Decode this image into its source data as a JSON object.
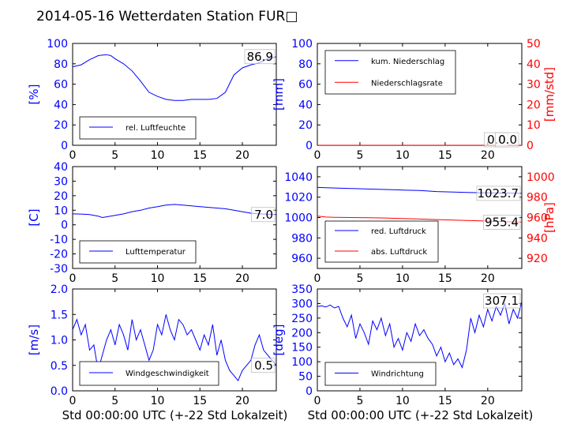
{
  "title": "2014-05-16 Wetterdaten Station FUR□",
  "xlabel": "Std 00:00:00 UTC (+-22 Std Lokalzeit)",
  "colors": {
    "left": "#0000ff",
    "right": "#ff0000"
  },
  "chart_data": [
    {
      "type": "line",
      "xlim": [
        0,
        24
      ],
      "ylim": [
        0,
        100
      ],
      "x_ticks": [
        0,
        5,
        10,
        15,
        20
      ],
      "y_ticks": [
        0,
        20,
        40,
        60,
        80,
        100
      ],
      "ylabel": "[%]",
      "annotation": "86.9",
      "legend_position": "lower-left",
      "series": [
        {
          "name": "rel. Luftfeuchte",
          "color": "#0000ff",
          "x": [
            0,
            1,
            2,
            3,
            4,
            4.5,
            5,
            6,
            7,
            8,
            9,
            10,
            11,
            12,
            13,
            14,
            15,
            16,
            17,
            18,
            19,
            20,
            21,
            22,
            23,
            24
          ],
          "y": [
            77,
            79,
            84,
            88,
            89,
            88,
            85,
            80,
            73,
            63,
            52,
            48,
            45,
            44,
            44,
            45,
            45,
            45,
            46,
            52,
            69,
            76,
            79,
            81,
            85,
            87
          ]
        }
      ]
    },
    {
      "type": "line",
      "xlim": [
        0,
        24
      ],
      "ylim": [
        0,
        100
      ],
      "ylim_right": [
        0,
        50
      ],
      "x_ticks": [
        0,
        5,
        10,
        15,
        20
      ],
      "y_ticks": [
        0,
        20,
        40,
        60,
        80,
        100
      ],
      "y_ticks_right": [
        0,
        10,
        20,
        30,
        40,
        50
      ],
      "ylabel": "[mm]",
      "ylabel_right": "[mm/std]",
      "annotations": [
        "0.0",
        "0.0"
      ],
      "legend_position": "upper-left",
      "series": [
        {
          "name": "kum. Niederschlag",
          "color": "#0000ff",
          "x": [
            0,
            24
          ],
          "y": [
            0,
            0
          ]
        },
        {
          "name": "Niederschlagsrate",
          "color": "#ff0000",
          "axis": "right",
          "x": [
            0,
            24
          ],
          "y": [
            0,
            0
          ]
        }
      ]
    },
    {
      "type": "line",
      "xlim": [
        0,
        24
      ],
      "ylim": [
        -30,
        40
      ],
      "x_ticks": [
        0,
        5,
        10,
        15,
        20
      ],
      "y_ticks": [
        -30,
        -20,
        -10,
        0,
        10,
        20,
        30,
        40
      ],
      "ylabel": "[C]",
      "annotation": "7.0",
      "legend_position": "lower-left",
      "series": [
        {
          "name": "Lufttemperatur",
          "color": "#0000ff",
          "x": [
            0,
            1,
            2,
            3,
            3.5,
            4,
            5,
            6,
            7,
            8,
            9,
            10,
            11,
            12,
            13,
            14,
            15,
            16,
            17,
            18,
            19,
            20,
            21,
            22,
            23,
            24
          ],
          "y": [
            7.5,
            7.4,
            7,
            6,
            5,
            5.5,
            6.5,
            7.5,
            9,
            10,
            11.5,
            12.5,
            13.5,
            14,
            13.5,
            13,
            12.5,
            12,
            11.5,
            11,
            10,
            9,
            8,
            7.5,
            7.2,
            7
          ]
        }
      ]
    },
    {
      "type": "line",
      "xlim": [
        0,
        24
      ],
      "ylim": [
        950,
        1050
      ],
      "ylim_right": [
        910,
        1010
      ],
      "x_ticks": [
        0,
        5,
        10,
        15,
        20
      ],
      "y_ticks": [
        960,
        980,
        1000,
        1020,
        1040
      ],
      "y_ticks_right": [
        920,
        940,
        960,
        980,
        1000
      ],
      "ylabel": "",
      "ylabel_right": "[hPa]",
      "annotations": [
        "1023.7",
        "955.4"
      ],
      "legend_position": "lower-left",
      "series": [
        {
          "name": "red. Luftdruck",
          "color": "#0000ff",
          "x": [
            0,
            2,
            4,
            6,
            8,
            10,
            12,
            14,
            16,
            18,
            20,
            22,
            24
          ],
          "y": [
            1029.5,
            1029,
            1028.5,
            1028,
            1027.5,
            1027,
            1026.5,
            1025.5,
            1025,
            1024.5,
            1024.3,
            1024,
            1023.7
          ]
        },
        {
          "name": "abs. Luftdruck",
          "color": "#ff0000",
          "axis": "right",
          "x": [
            0,
            1,
            2,
            4,
            6,
            8,
            10,
            12,
            14,
            16,
            18,
            20,
            22,
            24
          ],
          "y": [
            961.5,
            960.5,
            960.2,
            960,
            959.8,
            959.5,
            959,
            958.5,
            958,
            957.5,
            957,
            956.5,
            956,
            955.4
          ]
        }
      ]
    },
    {
      "type": "line",
      "xlim": [
        0,
        24
      ],
      "ylim": [
        0,
        2
      ],
      "x_ticks": [
        0,
        5,
        10,
        15,
        20
      ],
      "y_ticks": [
        0.0,
        0.5,
        1.0,
        1.5,
        2.0
      ],
      "ylabel": "[m/s]",
      "annotation": "0.5",
      "legend_position": "lower-left",
      "series": [
        {
          "name": "Windgeschwindigkeit",
          "color": "#0000ff",
          "x": [
            0,
            0.5,
            1,
            1.5,
            2,
            2.5,
            3,
            3.5,
            4,
            4.5,
            5,
            5.5,
            6,
            6.5,
            7,
            7.5,
            8,
            8.5,
            9,
            9.5,
            10,
            10.5,
            11,
            11.5,
            12,
            12.5,
            13,
            13.5,
            14,
            14.5,
            15,
            15.5,
            16,
            16.5,
            17,
            17.5,
            18,
            18.5,
            19,
            19.5,
            20,
            20.5,
            21,
            21.5,
            22,
            22.5,
            23,
            23.5,
            24
          ],
          "y": [
            1.2,
            1.4,
            1.1,
            1.3,
            0.8,
            0.9,
            0.4,
            0.7,
            1.0,
            1.2,
            0.9,
            1.3,
            1.1,
            0.8,
            1.4,
            1.0,
            1.2,
            0.9,
            0.6,
            0.8,
            1.3,
            1.1,
            1.5,
            1.2,
            1.0,
            1.4,
            1.3,
            1.1,
            1.2,
            1.0,
            0.8,
            1.1,
            0.9,
            1.3,
            0.7,
            1.0,
            0.6,
            0.4,
            0.3,
            0.2,
            0.4,
            0.5,
            0.6,
            0.9,
            1.1,
            0.8,
            0.7,
            0.6,
            0.5
          ]
        }
      ]
    },
    {
      "type": "line",
      "xlim": [
        0,
        24
      ],
      "ylim": [
        0,
        350
      ],
      "x_ticks": [
        0,
        5,
        10,
        15,
        20
      ],
      "y_ticks": [
        0,
        50,
        100,
        150,
        200,
        250,
        300,
        350
      ],
      "ylabel": "[deg]",
      "annotation": "307.1",
      "legend_position": "lower-left",
      "series": [
        {
          "name": "Windrichtung",
          "color": "#0000ff",
          "x": [
            0,
            0.5,
            1,
            1.5,
            2,
            2.5,
            3,
            3.5,
            4,
            4.5,
            5,
            5.5,
            6,
            6.5,
            7,
            7.5,
            8,
            8.5,
            9,
            9.5,
            10,
            10.5,
            11,
            11.5,
            12,
            12.5,
            13,
            13.5,
            14,
            14.5,
            15,
            15.5,
            16,
            16.5,
            17,
            17.5,
            18,
            18.5,
            19,
            19.5,
            20,
            20.5,
            21,
            21.5,
            22,
            22.5,
            23,
            23.5,
            24
          ],
          "y": [
            290,
            292,
            288,
            295,
            285,
            290,
            250,
            220,
            260,
            180,
            230,
            200,
            160,
            240,
            210,
            250,
            190,
            230,
            150,
            180,
            140,
            200,
            170,
            230,
            190,
            210,
            180,
            160,
            120,
            150,
            100,
            130,
            90,
            110,
            80,
            140,
            250,
            200,
            260,
            220,
            280,
            240,
            290,
            260,
            300,
            230,
            280,
            250,
            307
          ]
        }
      ]
    }
  ]
}
